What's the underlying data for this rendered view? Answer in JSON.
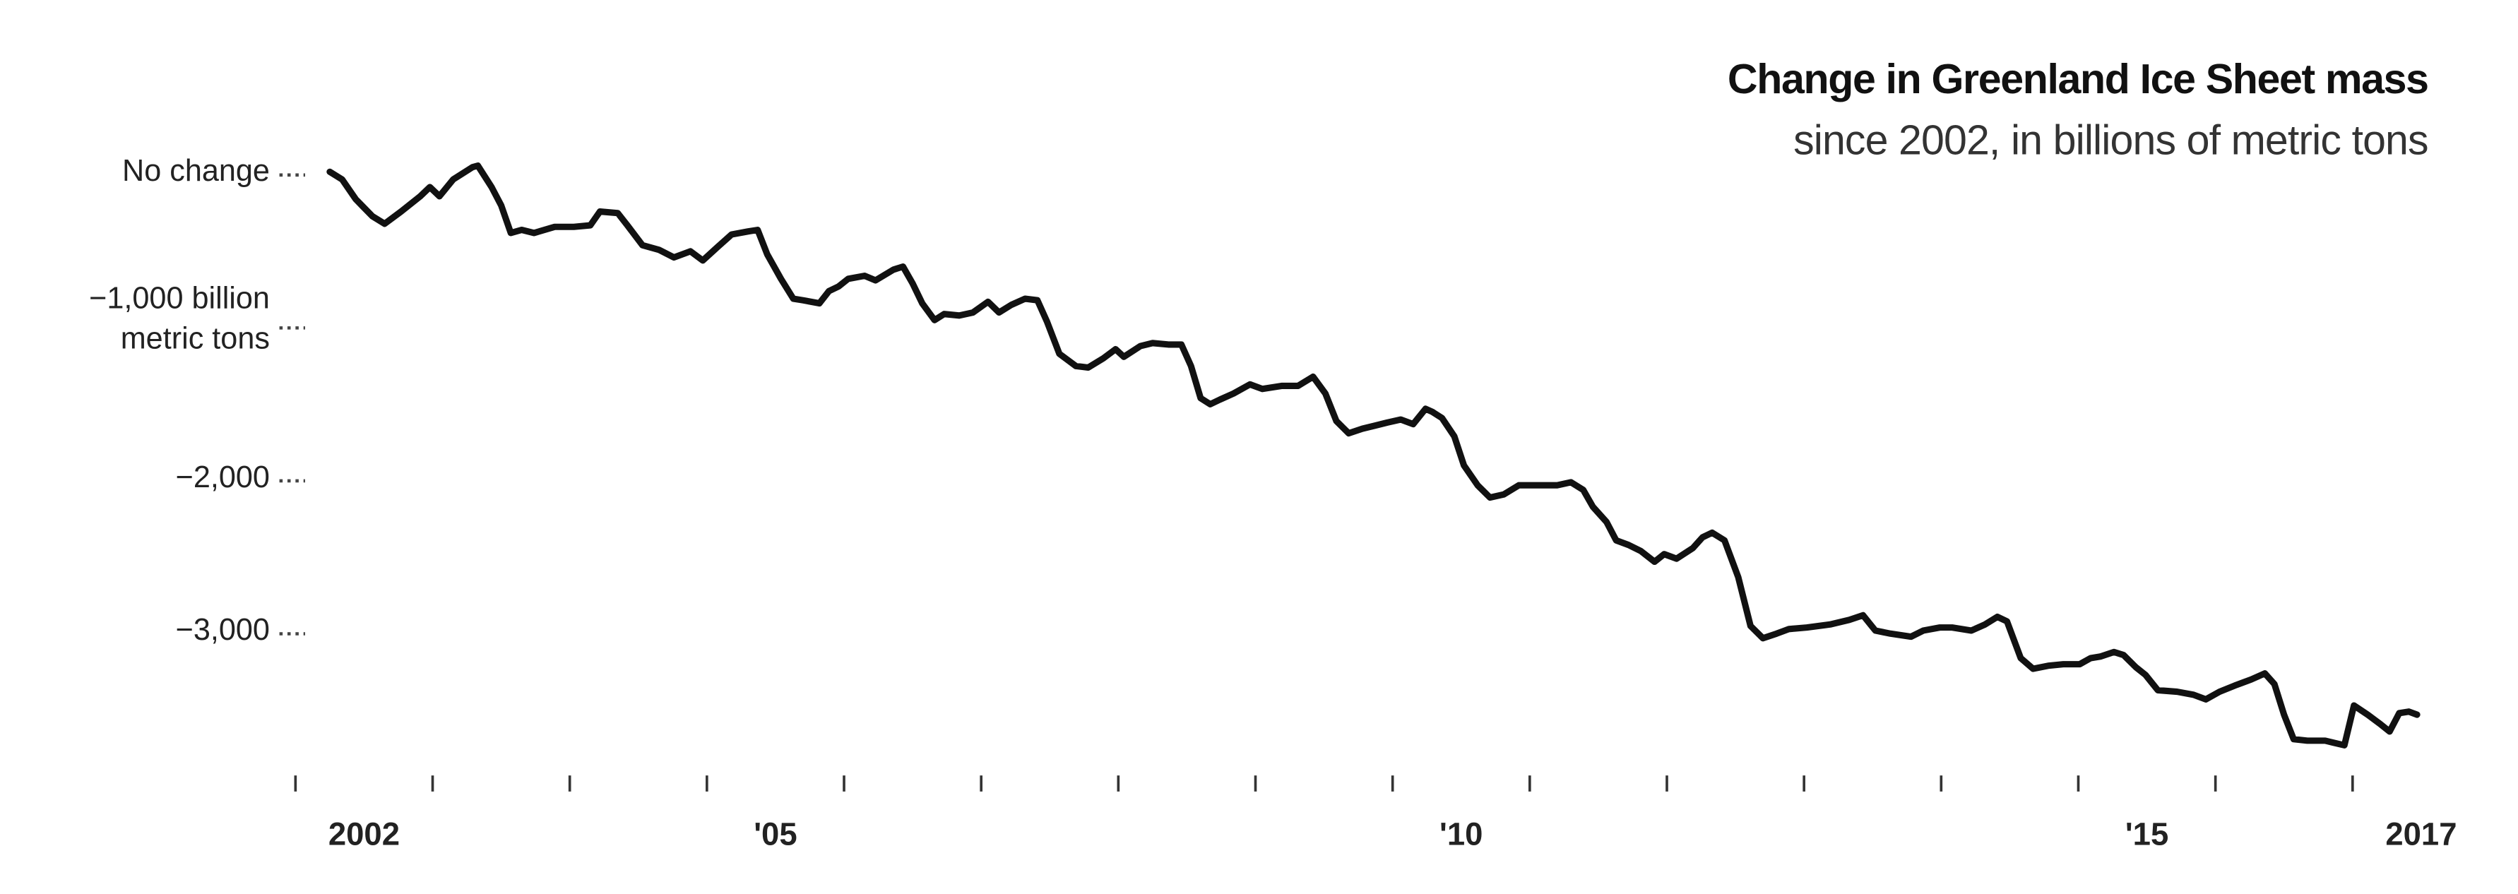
{
  "chart_data": {
    "type": "line",
    "title": "Change in Greenland Ice Sheet mass",
    "subtitle": "since 2002, in billions of metric tons",
    "color": "#111111",
    "xlim": [
      2002,
      2017.6
    ],
    "ylim": [
      -4000,
      0
    ],
    "yticks": [
      {
        "value": 0,
        "label": "No change"
      },
      {
        "value": -1000,
        "label": "−1,000 billion\nmetric tons"
      },
      {
        "value": -2000,
        "label": "−2,000"
      },
      {
        "value": -3000,
        "label": "−3,000"
      }
    ],
    "xticks": [
      {
        "value": 2002,
        "label": "2002"
      },
      {
        "value": 2003,
        "label": null
      },
      {
        "value": 2004,
        "label": null
      },
      {
        "value": 2005,
        "label": "'05"
      },
      {
        "value": 2006,
        "label": null
      },
      {
        "value": 2007,
        "label": null
      },
      {
        "value": 2008,
        "label": null
      },
      {
        "value": 2009,
        "label": null
      },
      {
        "value": 2010,
        "label": "'10"
      },
      {
        "value": 2011,
        "label": null
      },
      {
        "value": 2012,
        "label": null
      },
      {
        "value": 2013,
        "label": null
      },
      {
        "value": 2014,
        "label": null
      },
      {
        "value": 2015,
        "label": "'15"
      },
      {
        "value": 2016,
        "label": null
      },
      {
        "value": 2017,
        "label": "2017"
      }
    ],
    "x": [
      2002.25,
      2002.34,
      2002.44,
      2002.56,
      2002.65,
      2002.77,
      2002.91,
      2002.98,
      2003.05,
      2003.15,
      2003.29,
      2003.33,
      2003.43,
      2003.5,
      2003.57,
      2003.65,
      2003.74,
      2003.89,
      2004.03,
      2004.15,
      2004.22,
      2004.35,
      2004.42,
      2004.53,
      2004.65,
      2004.76,
      2004.88,
      2004.97,
      2005.08,
      2005.18,
      2005.3,
      2005.37,
      2005.44,
      2005.54,
      2005.63,
      2005.7,
      2005.82,
      2005.89,
      2005.96,
      2006.03,
      2006.15,
      2006.23,
      2006.36,
      2006.43,
      2006.5,
      2006.57,
      2006.66,
      2006.73,
      2006.84,
      2006.94,
      2007.05,
      2007.13,
      2007.22,
      2007.32,
      2007.41,
      2007.48,
      2007.57,
      2007.69,
      2007.78,
      2007.89,
      2007.98,
      2008.04,
      2008.16,
      2008.25,
      2008.37,
      2008.46,
      2008.53,
      2008.6,
      2008.67,
      2008.74,
      2008.84,
      2008.96,
      2009.05,
      2009.19,
      2009.31,
      2009.42,
      2009.51,
      2009.59,
      2009.68,
      2009.78,
      2009.87,
      2009.96,
      2010.06,
      2010.15,
      2010.24,
      2010.29,
      2010.36,
      2010.45,
      2010.52,
      2010.62,
      2010.71,
      2010.81,
      2010.92,
      2011.06,
      2011.2,
      2011.3,
      2011.39,
      2011.46,
      2011.56,
      2011.63,
      2011.72,
      2011.81,
      2011.91,
      2011.98,
      2012.07,
      2012.19,
      2012.26,
      2012.33,
      2012.42,
      2012.52,
      2012.61,
      2012.7,
      2012.8,
      2012.89,
      2013.02,
      2013.19,
      2013.33,
      2013.43,
      2013.52,
      2013.63,
      2013.78,
      2013.87,
      2013.99,
      2014.08,
      2014.22,
      2014.32,
      2014.41,
      2014.48,
      2014.58,
      2014.67,
      2014.78,
      2014.89,
      2015.01,
      2015.09,
      2015.16,
      2015.26,
      2015.33,
      2015.42,
      2015.49,
      2015.58,
      2015.72,
      2015.84,
      2015.93,
      2016.03,
      2016.14,
      2016.26,
      2016.36,
      2016.43,
      2016.5,
      2016.57,
      2016.67,
      2016.8,
      2016.94,
      2017.01,
      2017.11,
      2017.2,
      2017.27,
      2017.34,
      2017.41,
      2017.47
    ],
    "values": [
      0,
      -50,
      -180,
      -290,
      -340,
      -260,
      -160,
      -100,
      -160,
      -50,
      30,
      40,
      -100,
      -220,
      -400,
      -380,
      -400,
      -360,
      -360,
      -350,
      -260,
      -270,
      -350,
      -480,
      -510,
      -560,
      -520,
      -580,
      -490,
      -410,
      -390,
      -380,
      -540,
      -700,
      -830,
      -840,
      -860,
      -780,
      -750,
      -700,
      -680,
      -710,
      -640,
      -620,
      -730,
      -860,
      -970,
      -930,
      -940,
      -920,
      -850,
      -920,
      -870,
      -830,
      -840,
      -980,
      -1190,
      -1270,
      -1280,
      -1220,
      -1160,
      -1210,
      -1140,
      -1120,
      -1130,
      -1130,
      -1270,
      -1480,
      -1520,
      -1490,
      -1450,
      -1390,
      -1420,
      -1400,
      -1400,
      -1340,
      -1450,
      -1630,
      -1710,
      -1680,
      -1660,
      -1640,
      -1620,
      -1650,
      -1550,
      -1570,
      -1610,
      -1730,
      -1920,
      -2050,
      -2130,
      -2110,
      -2050,
      -2050,
      -2050,
      -2030,
      -2080,
      -2190,
      -2290,
      -2410,
      -2440,
      -2480,
      -2550,
      -2500,
      -2530,
      -2460,
      -2390,
      -2360,
      -2410,
      -2650,
      -2970,
      -3050,
      -3020,
      -2990,
      -2980,
      -2960,
      -2930,
      -2900,
      -3000,
      -3020,
      -3040,
      -3000,
      -2980,
      -2980,
      -3000,
      -2960,
      -2910,
      -2940,
      -3180,
      -3250,
      -3230,
      -3220,
      -3220,
      -3180,
      -3170,
      -3140,
      -3160,
      -3240,
      -3290,
      -3390,
      -3400,
      -3420,
      -3450,
      -3400,
      -3360,
      -3320,
      -3280,
      -3350,
      -3550,
      -3710,
      -3720,
      -3720,
      -3750,
      -3490,
      -3550,
      -3610,
      -3660,
      -3540,
      -3530,
      -3550
    ]
  }
}
